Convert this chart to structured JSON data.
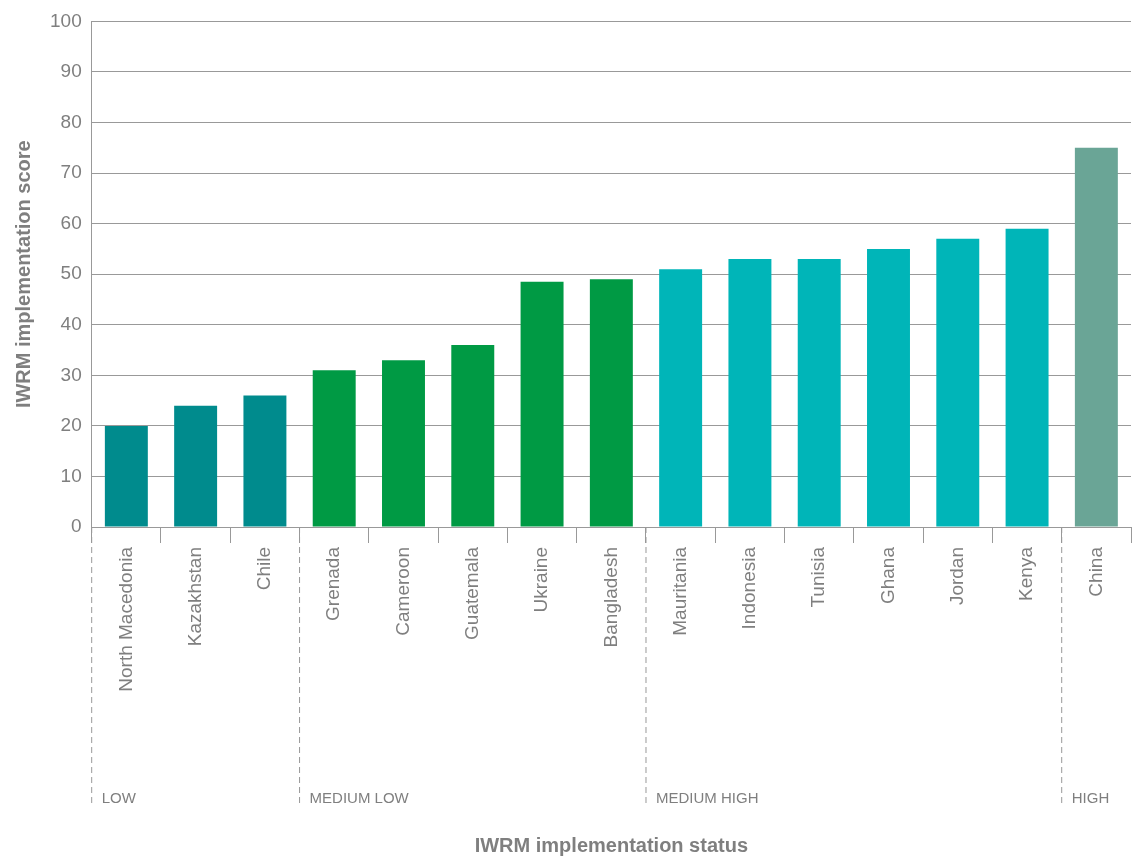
{
  "chart_data": {
    "type": "bar",
    "ylabel": "IWRM implementation score",
    "categories": [
      "North Macedonia",
      "Kazakhstan",
      "Chile",
      "Grenada",
      "Cameroon",
      "Guatemala",
      "Ukraine",
      "Bangladesh",
      "Mauritania",
      "Indonesia",
      "Tunisia",
      "Ghana",
      "Jordan",
      "Kenya",
      "China"
    ],
    "values": [
      20,
      24,
      26,
      31,
      33,
      36,
      48.5,
      49,
      51,
      53,
      53,
      55,
      57,
      59,
      75
    ],
    "colors": [
      "#008b8d",
      "#008b8d",
      "#008b8d",
      "#009a44",
      "#009a44",
      "#009a44",
      "#009a44",
      "#009a44",
      "#00b5b8",
      "#00b5b8",
      "#00b5b8",
      "#00b5b8",
      "#00b5b8",
      "#00b5b8",
      "#6aa596"
    ],
    "annotations": [
      "LOW",
      "MEDIUM LOW",
      "MEDIUM HIGH",
      "HIGH",
      "IWRM implementation status"
    ],
    "ylim": [
      0,
      100
    ],
    "yticks": [
      0,
      10,
      20,
      30,
      40,
      50,
      60,
      70,
      80,
      90,
      100
    ],
    "grid": "y",
    "legend": false
  }
}
